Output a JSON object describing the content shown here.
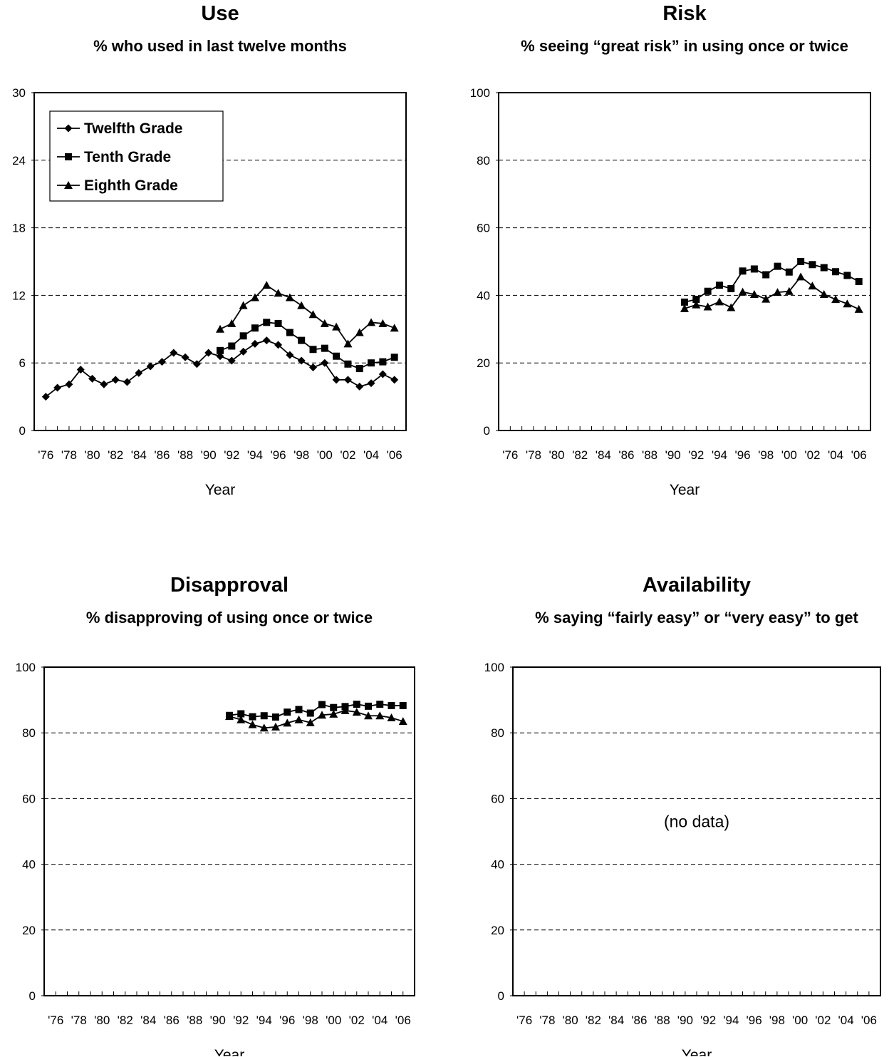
{
  "chart_data": [
    {
      "type": "line",
      "title": "Use",
      "subtitle": "% who used in last twelve months",
      "xlabel": "Year",
      "ylabel": "",
      "ylim": [
        0,
        30
      ],
      "yticks": [
        0,
        6,
        12,
        18,
        24,
        30
      ],
      "xlim": [
        1975,
        2007
      ],
      "x_ticklabels": [
        "'76",
        "'78",
        "'80",
        "'82",
        "'84",
        "'86",
        "'88",
        "'90",
        "'92",
        "'94",
        "'96",
        "'98",
        "'00",
        "'02",
        "'04",
        "'06"
      ],
      "grid": "horizontal dashed",
      "legend": "top-left",
      "note": "",
      "series": [
        {
          "name": "Twelfth Grade",
          "marker": "diamond",
          "x": [
            1976,
            1977,
            1978,
            1979,
            1980,
            1981,
            1982,
            1983,
            1984,
            1985,
            1986,
            1987,
            1988,
            1989,
            1990,
            1991,
            1992,
            1993,
            1994,
            1995,
            1996,
            1997,
            1998,
            1999,
            2000,
            2001,
            2002,
            2003,
            2004,
            2005,
            2006
          ],
          "y": [
            3.0,
            3.8,
            4.1,
            5.4,
            4.6,
            4.1,
            4.5,
            4.3,
            5.1,
            5.7,
            6.1,
            6.9,
            6.5,
            5.9,
            6.9,
            6.6,
            6.2,
            7.0,
            7.7,
            8.0,
            7.6,
            6.7,
            6.2,
            5.6,
            6.0,
            4.5,
            4.5,
            3.9,
            4.2,
            5.0,
            4.5
          ]
        },
        {
          "name": "Tenth Grade",
          "marker": "square",
          "x": [
            1991,
            1992,
            1993,
            1994,
            1995,
            1996,
            1997,
            1998,
            1999,
            2000,
            2001,
            2002,
            2003,
            2004,
            2005,
            2006
          ],
          "y": [
            7.1,
            7.5,
            8.4,
            9.1,
            9.6,
            9.5,
            8.7,
            8.0,
            7.2,
            7.3,
            6.6,
            5.9,
            5.5,
            6.0,
            6.1,
            6.5
          ]
        },
        {
          "name": "Eighth Grade",
          "marker": "triangle",
          "x": [
            1991,
            1992,
            1993,
            1994,
            1995,
            1996,
            1997,
            1998,
            1999,
            2000,
            2001,
            2002,
            2003,
            2004,
            2005,
            2006
          ],
          "y": [
            9.0,
            9.5,
            11.1,
            11.8,
            12.9,
            12.2,
            11.8,
            11.1,
            10.3,
            9.5,
            9.2,
            7.7,
            8.7,
            9.6,
            9.5,
            9.1
          ]
        }
      ]
    },
    {
      "type": "line",
      "title": "Risk",
      "subtitle": "% seeing “great risk” in using once or twice",
      "xlabel": "Year",
      "ylabel": "",
      "ylim": [
        0,
        100
      ],
      "yticks": [
        0,
        20,
        40,
        60,
        80,
        100
      ],
      "xlim": [
        1975,
        2007
      ],
      "x_ticklabels": [
        "'76",
        "'78",
        "'80",
        "'82",
        "'84",
        "'86",
        "'88",
        "'90",
        "'92",
        "'94",
        "'96",
        "'98",
        "'00",
        "'02",
        "'04",
        "'06"
      ],
      "grid": "horizontal dashed",
      "legend": "",
      "note": "",
      "series": [
        {
          "name": "Tenth Grade",
          "marker": "square",
          "x": [
            1991,
            1992,
            1993,
            1994,
            1995,
            1996,
            1997,
            1998,
            1999,
            2000,
            2001,
            2002,
            2003,
            2004,
            2005,
            2006
          ],
          "y": [
            38.0,
            38.8,
            41.2,
            43.0,
            42.0,
            47.2,
            47.8,
            46.1,
            48.6,
            46.9,
            50.0,
            49.1,
            48.2,
            47.0,
            45.9,
            44.1
          ]
        },
        {
          "name": "Eighth Grade",
          "marker": "triangle",
          "x": [
            1991,
            1992,
            1993,
            1994,
            1995,
            1996,
            1997,
            1998,
            1999,
            2000,
            2001,
            2002,
            2003,
            2004,
            2005,
            2006
          ],
          "y": [
            36.1,
            37.2,
            36.6,
            38.1,
            36.4,
            41.0,
            40.3,
            38.9,
            40.9,
            41.2,
            45.5,
            42.8,
            40.3,
            38.8,
            37.5,
            35.9
          ]
        }
      ]
    },
    {
      "type": "line",
      "title": "Disapproval",
      "subtitle": "% disapproving of using once or twice",
      "xlabel": "Year",
      "ylabel": "",
      "ylim": [
        0,
        100
      ],
      "yticks": [
        0,
        20,
        40,
        60,
        80,
        100
      ],
      "xlim": [
        1975,
        2007
      ],
      "x_ticklabels": [
        "'76",
        "'78",
        "'80",
        "'82",
        "'84",
        "'86",
        "'88",
        "'90",
        "'92",
        "'94",
        "'96",
        "'98",
        "'00",
        "'02",
        "'04",
        "'06"
      ],
      "grid": "horizontal dashed",
      "legend": "",
      "note": "",
      "series": [
        {
          "name": "Tenth Grade",
          "marker": "square",
          "x": [
            1991,
            1992,
            1993,
            1994,
            1995,
            1996,
            1997,
            1998,
            1999,
            2000,
            2001,
            2002,
            2003,
            2004,
            2005,
            2006
          ],
          "y": [
            85.3,
            85.8,
            84.9,
            85.2,
            84.8,
            86.3,
            87.1,
            86.0,
            88.6,
            87.7,
            88.0,
            88.7,
            88.1,
            88.7,
            88.3,
            88.3
          ]
        },
        {
          "name": "Eighth Grade",
          "marker": "triangle",
          "x": [
            1991,
            1992,
            1993,
            1994,
            1995,
            1996,
            1997,
            1998,
            1999,
            2000,
            2001,
            2002,
            2003,
            2004,
            2005,
            2006
          ],
          "y": [
            85.0,
            84.0,
            82.5,
            81.5,
            81.8,
            83.0,
            84.0,
            83.1,
            85.4,
            85.7,
            86.8,
            86.3,
            85.2,
            85.2,
            84.6,
            83.5
          ]
        }
      ]
    },
    {
      "type": "line",
      "title": "Availability",
      "subtitle": "% saying “fairly easy” or “very easy” to get",
      "xlabel": "Year",
      "ylabel": "",
      "ylim": [
        0,
        100
      ],
      "yticks": [
        0,
        20,
        40,
        60,
        80,
        100
      ],
      "xlim": [
        1975,
        2007
      ],
      "x_ticklabels": [
        "'76",
        "'78",
        "'80",
        "'82",
        "'84",
        "'86",
        "'88",
        "'90",
        "'92",
        "'94",
        "'96",
        "'98",
        "'00",
        "'02",
        "'04",
        "'06"
      ],
      "grid": "horizontal dashed",
      "legend": "",
      "note": "(no data)",
      "series": []
    }
  ]
}
